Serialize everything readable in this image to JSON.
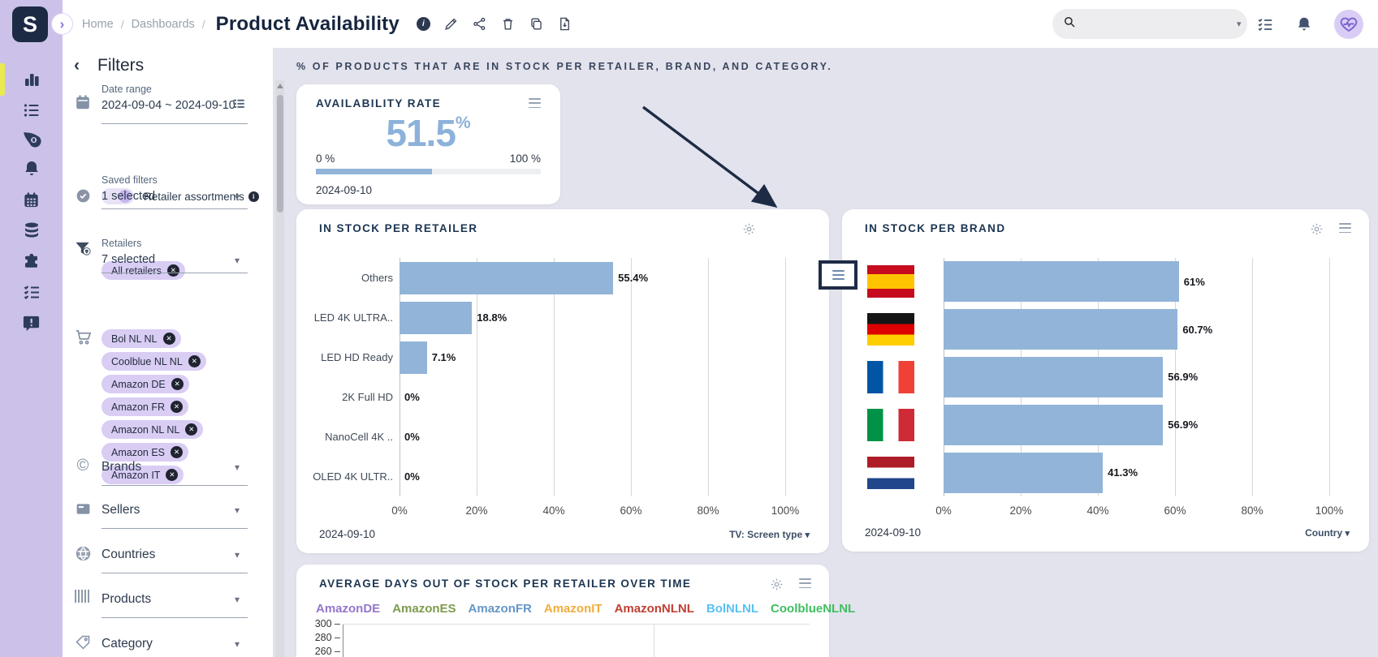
{
  "header": {
    "logo_letter": "S",
    "breadcrumb": {
      "home": "Home",
      "separator": "/",
      "section": "Dashboards"
    },
    "page_title": "Product Availability",
    "actions": [
      "info",
      "edit",
      "share",
      "delete",
      "duplicate",
      "export-pdf"
    ],
    "search": {
      "placeholder": ""
    },
    "right_icons": [
      "tasks",
      "notifications",
      "health-avatar"
    ]
  },
  "sidebar": {
    "items": [
      {
        "name": "dashboards",
        "icon": "bar-chart-icon",
        "active": true
      },
      {
        "name": "lists",
        "icon": "list-icon",
        "active": false
      },
      {
        "name": "deals",
        "icon": "price-tag-icon",
        "active": false
      },
      {
        "name": "alerts",
        "icon": "bell-icon",
        "active": false
      },
      {
        "name": "calendar",
        "icon": "calendar-icon",
        "active": false
      },
      {
        "name": "data",
        "icon": "database-icon",
        "active": false
      },
      {
        "name": "integrations",
        "icon": "puzzle-icon",
        "active": false
      },
      {
        "name": "tasks",
        "icon": "checklist-icon",
        "active": false
      },
      {
        "name": "feedback",
        "icon": "feedback-icon",
        "active": false
      }
    ]
  },
  "filters": {
    "title": "Filters",
    "date_range": {
      "label": "Date range",
      "value": "2024-09-04 ~ 2024-09-10"
    },
    "retailer_assortments": {
      "label": "Retailer assortments",
      "toggle_on": true
    },
    "saved_filters": {
      "label": "Saved filters",
      "value": "1 selected",
      "chips": [
        "All retailers"
      ]
    },
    "retailers": {
      "label": "Retailers",
      "value": "7 selected",
      "chips": [
        "Bol NL NL",
        "Coolblue NL NL",
        "Amazon DE",
        "Amazon FR",
        "Amazon NL NL",
        "Amazon ES",
        "Amazon IT"
      ]
    },
    "sections": [
      {
        "label": "Brands",
        "icon": "copyright-icon"
      },
      {
        "label": "Sellers",
        "icon": "storefront-icon"
      },
      {
        "label": "Countries",
        "icon": "globe-icon"
      },
      {
        "label": "Products",
        "icon": "barcode-icon"
      },
      {
        "label": "Category",
        "icon": "tag-icon"
      }
    ]
  },
  "main": {
    "note": "% OF PRODUCTS THAT ARE IN STOCK PER RETAILER, BRAND, AND CATEGORY.",
    "availability": {
      "title": "AVAILABILITY RATE",
      "value": "51.5",
      "unit": "%",
      "percent": 51.5,
      "min_label": "0 %",
      "max_label": "100 %",
      "date": "2024-09-10"
    },
    "annotation": {
      "shape": "arrow-and-box",
      "target": "in-stock-per-retailer card menu button"
    }
  },
  "colors": {
    "accent_lavender": "#ccc2e9",
    "navy": "#1e2b45",
    "bar_blue": "#92b4d8",
    "active_yellow": "#e8ea4f",
    "chip_bg": "#d9cdf4"
  },
  "chart_data": [
    {
      "id": "in-stock-per-retailer",
      "type": "bar",
      "orientation": "horizontal",
      "grid": true,
      "title": "IN STOCK PER RETAILER",
      "categories": [
        "Others",
        "LED 4K ULTRA..",
        "LED HD Ready",
        "2K Full HD",
        "NanoCell 4K ..",
        "OLED 4K ULTR.."
      ],
      "values": [
        55.4,
        18.8,
        7.1,
        0,
        0,
        0
      ],
      "value_labels": [
        "55.4%",
        "18.8%",
        "7.1%",
        "0%",
        "0%",
        "0%"
      ],
      "x_ticks": [
        "0%",
        "20%",
        "40%",
        "60%",
        "80%",
        "100%"
      ],
      "xlim": [
        0,
        100
      ],
      "bar_color": "#92b4d8",
      "date": "2024-09-10",
      "dimension_selector": "TV: Screen type"
    },
    {
      "id": "in-stock-per-brand",
      "type": "bar",
      "orientation": "horizontal",
      "grid": true,
      "title": "IN STOCK PER BRAND",
      "category_type": "flag",
      "categories": [
        "spain",
        "germany",
        "france",
        "italy",
        "netherlands"
      ],
      "values": [
        61,
        60.7,
        56.9,
        56.9,
        41.3
      ],
      "value_labels": [
        "61%",
        "60.7%",
        "56.9%",
        "56.9%",
        "41.3%"
      ],
      "x_ticks": [
        "0%",
        "20%",
        "40%",
        "60%",
        "80%",
        "100%"
      ],
      "xlim": [
        0,
        100
      ],
      "bar_color": "#92b4d8",
      "date": "2024-09-10",
      "dimension_selector": "Country"
    },
    {
      "id": "average-days-out-of-stock-per-retailer-over-time",
      "type": "line",
      "title": "AVERAGE DAYS OUT OF STOCK PER RETAILER OVER TIME",
      "series": [
        {
          "name": "AmazonDE",
          "color": "#9575cd"
        },
        {
          "name": "AmazonES",
          "color": "#7d9b4e"
        },
        {
          "name": "AmazonFR",
          "color": "#6596c8"
        },
        {
          "name": "AmazonIT",
          "color": "#f0ad3d"
        },
        {
          "name": "AmazonNLNL",
          "color": "#bf3f34"
        },
        {
          "name": "BolNLNL",
          "color": "#56c2f2"
        },
        {
          "name": "CoolblueNLNL",
          "color": "#3ebf5f"
        }
      ],
      "y_ticks_visible": [
        "300",
        "280",
        "260"
      ],
      "note": "plot area cut off at bottom edge of screenshot"
    }
  ]
}
